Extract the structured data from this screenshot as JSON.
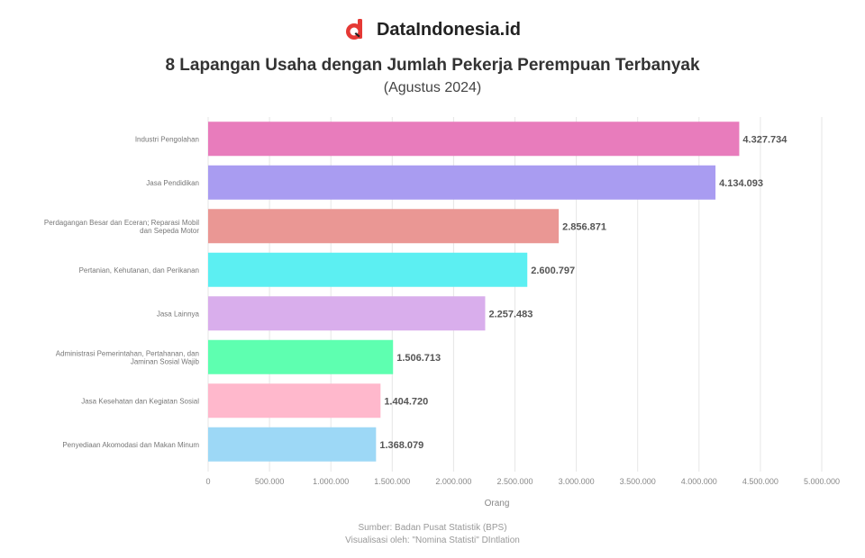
{
  "brand": {
    "name": "DataIndonesia.id",
    "icon": "dataindonesia-logo-icon",
    "accent": "#e53935"
  },
  "header": {
    "title": "8 Lapangan Usaha dengan Jumlah Pekerja Perempuan Terbanyak",
    "subtitle": "(Agustus 2024)"
  },
  "chart_data": {
    "type": "bar",
    "orientation": "horizontal",
    "categories": [
      "Industri Pengolahan",
      "Jasa Pendidikan",
      "Perdagangan Besar dan Eceran; Reparasi Mobil dan Sepeda Motor",
      "Pertanian, Kehutanan, dan Perikanan",
      "Jasa Lainnya",
      "Administrasi Pemerintahan, Pertahanan, dan Jaminan Sosial Wajib",
      "Jasa Kesehatan dan Kegiatan Sosial",
      "Penyediaan Akomodasi dan Makan Minum"
    ],
    "values": [
      4327734,
      4134093,
      2856871,
      2600797,
      2257483,
      1506713,
      1404720,
      1368079
    ],
    "value_labels": [
      "4.327.734",
      "4.134.093",
      "2.856.871",
      "2.600.797",
      "2.257.483",
      "1.506.713",
      "1.404.720",
      "1.368.079"
    ],
    "colors": [
      "#e87cbc",
      "#a99cf1",
      "#ea9794",
      "#5ceff2",
      "#d9aeec",
      "#5effb0",
      "#ffb8cc",
      "#9dd8f6"
    ],
    "xlim": [
      0,
      5000000
    ],
    "xticks": [
      0,
      500000,
      1000000,
      1500000,
      2000000,
      2500000,
      3000000,
      3500000,
      4000000,
      4500000,
      5000000
    ],
    "xtick_labels": [
      "0",
      "500.000",
      "1.000.000",
      "1.500.000",
      "2.000.000",
      "2.500.000",
      "3.000.000",
      "3.500.000",
      "4.000.000",
      "4.500.000",
      "5.000.000"
    ],
    "xlabel": "Orang",
    "grid": "vertical"
  },
  "footer": {
    "source": "Sumber: Badan Pusat Statistik (BPS)",
    "note": "Visualisasi oleh: \"Nomina Statisti\" DIntlation"
  }
}
